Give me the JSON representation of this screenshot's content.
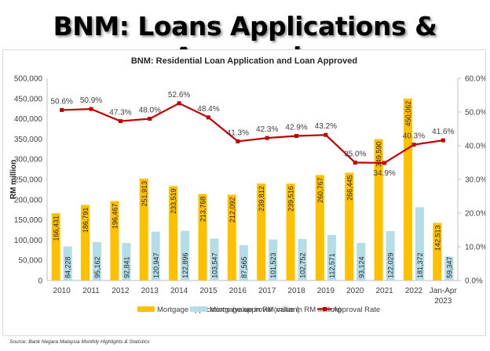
{
  "page": {
    "title": "BNM: Loans Applications & Approvals",
    "source": "Source:  Bank Negara Malaysia Monthly Highlights & Statistics"
  },
  "colors": {
    "applications": "#FFC000",
    "approvals": "#B4DDE7",
    "approval_rate": "#C00000",
    "axis": "#BFBFBF",
    "text": "#404040"
  },
  "chart_data": {
    "type": "bar+line",
    "title": "BNM: Residential Loan Application and Loan Approved",
    "xlabel": "",
    "ylabel": "RM million",
    "y2label": "",
    "ylim": [
      0,
      500000
    ],
    "y2lim": [
      0,
      60
    ],
    "yticks": [
      "0",
      "50,000",
      "100,000",
      "150,000",
      "200,000",
      "250,000",
      "300,000",
      "350,000",
      "400,000",
      "450,000",
      "500,000"
    ],
    "y2ticks": [
      "0.0%",
      "10.0%",
      "20.0%",
      "30.0%",
      "40.0%",
      "50.0%",
      "60.0%"
    ],
    "categories": [
      "2010",
      "2011",
      "2012",
      "2013",
      "2014",
      "2015",
      "2016",
      "2017",
      "2018",
      "2019",
      "2020",
      "2021",
      "2022",
      "Jan-Apr 2023"
    ],
    "category_lines": [
      [
        "2010"
      ],
      [
        "2011"
      ],
      [
        "2012"
      ],
      [
        "2013"
      ],
      [
        "2014"
      ],
      [
        "2015"
      ],
      [
        "2016"
      ],
      [
        "2017"
      ],
      [
        "2018"
      ],
      [
        "2019"
      ],
      [
        "2020"
      ],
      [
        "2021"
      ],
      [
        "2022"
      ],
      [
        "Jan-Apr",
        "2023"
      ]
    ],
    "series": [
      {
        "name": "Mortgage applications (value in RM million)",
        "type": "bar",
        "axis": "left",
        "values": [
          166431,
          186791,
          196467,
          251913,
          233519,
          213768,
          212092,
          239812,
          239516,
          260767,
          266445,
          349590,
          450062,
          142513
        ],
        "labels": [
          "166,431",
          "186,791",
          "196,467",
          "251,913",
          "233,519",
          "213,768",
          "212,092",
          "239,812",
          "239,516",
          "260,767",
          "266,445",
          "349,590",
          "450,062",
          "142,513"
        ]
      },
      {
        "name": "Mortgage approval (value in RM million)",
        "type": "bar",
        "axis": "left",
        "values": [
          84228,
          95162,
          92841,
          120947,
          122896,
          103547,
          87565,
          101523,
          102752,
          112571,
          93124,
          122029,
          181372,
          59347
        ],
        "labels": [
          "84,228",
          "95,162",
          "92,841",
          "120,947",
          "122,896",
          "103,547",
          "87,565",
          "101,523",
          "102,752",
          "112,571",
          "93,124",
          "122,029",
          "181,372",
          "59,347"
        ]
      },
      {
        "name": "Approval Rate",
        "type": "line",
        "axis": "right",
        "values": [
          50.6,
          50.9,
          47.3,
          48.0,
          52.6,
          48.4,
          41.3,
          42.3,
          42.9,
          43.2,
          35.0,
          34.9,
          40.3,
          41.6
        ],
        "labels": [
          "50.6%",
          "50.9%",
          "47.3%",
          "48.0%",
          "52.6%",
          "48.4%",
          "41.3%",
          "42.3%",
          "42.9%",
          "43.2%",
          "35.0%",
          "34.9%",
          "40.3%",
          "41.6%"
        ]
      }
    ],
    "grid": false,
    "legend_position": "bottom"
  }
}
